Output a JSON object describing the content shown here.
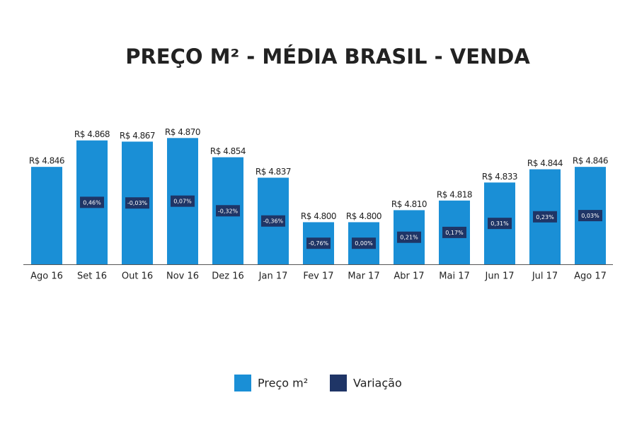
{
  "chart_data": {
    "type": "bar",
    "title": "PREÇO M² - MÉDIA BRASIL - VENDA",
    "categories": [
      "Ago 16",
      "Set 16",
      "Out 16",
      "Nov 16",
      "Dez 16",
      "Jan 17",
      "Fev 17",
      "Mar 17",
      "Abr 17",
      "Mai 17",
      "Jun 17",
      "Jul 17",
      "Ago 17"
    ],
    "series": [
      {
        "name": "Preço m²",
        "color": "#1a8fd6",
        "values": [
          4846,
          4868,
          4867,
          4870,
          4854,
          4837,
          4800,
          4800,
          4810,
          4818,
          4833,
          4844,
          4846
        ],
        "value_labels": [
          "R$ 4.846",
          "R$ 4.868",
          "R$ 4.867",
          "R$ 4.870",
          "R$ 4.854",
          "R$ 4.837",
          "R$ 4.800",
          "R$ 4.800",
          "R$ 4.810",
          "R$ 4.818",
          "R$ 4.833",
          "R$ 4.844",
          "R$ 4.846"
        ]
      },
      {
        "name": "Variação",
        "color": "#1f3566",
        "values": [
          null,
          0.46,
          -0.03,
          0.07,
          -0.32,
          -0.36,
          -0.76,
          0.0,
          0.21,
          0.17,
          0.31,
          0.23,
          0.03
        ],
        "value_labels": [
          null,
          "0,46%",
          "-0,03%",
          "0,07%",
          "-0,32%",
          "-0,36%",
          "-0,76%",
          "0,00%",
          "0,21%",
          "0,17%",
          "0,31%",
          "0,23%",
          "0,03%"
        ]
      }
    ],
    "ylim": [
      4765,
      4926
    ],
    "legend": "bottom"
  }
}
